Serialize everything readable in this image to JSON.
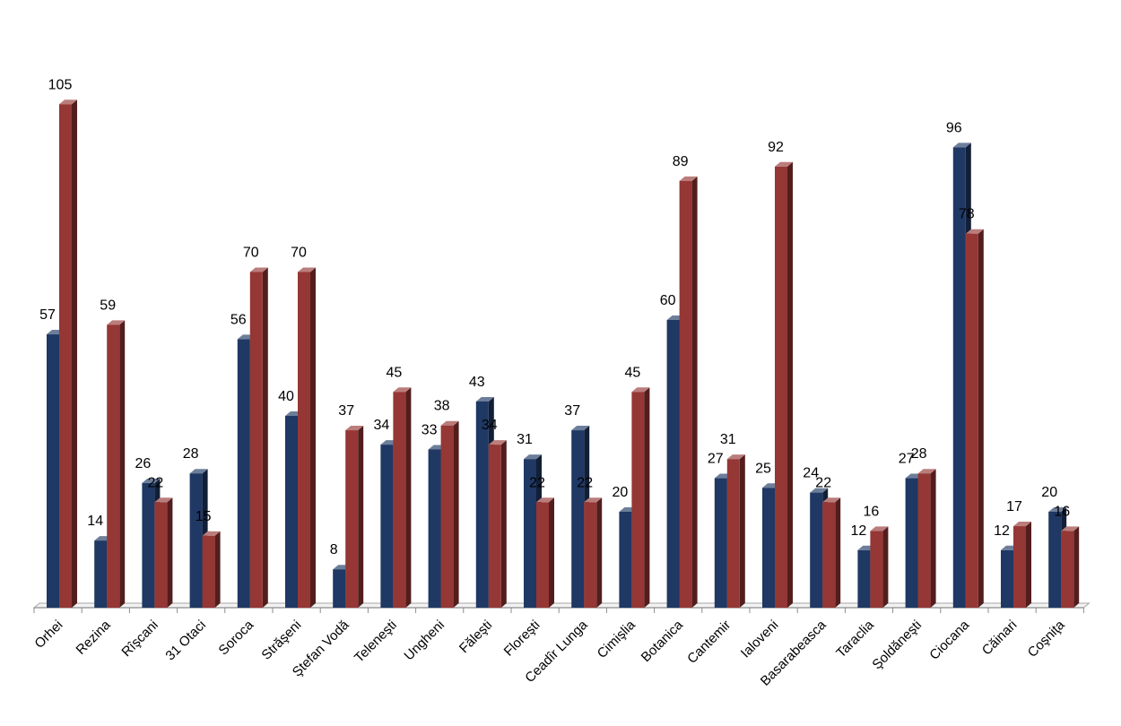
{
  "chart_data": {
    "type": "bar",
    "title": "",
    "xlabel": "",
    "ylabel": "",
    "ylim": [
      0,
      110
    ],
    "grid": false,
    "legend": "none",
    "categories": [
      "Orhei",
      "Rezina",
      "Rîşcani",
      "31 Otaci",
      "Soroca",
      "Străşeni",
      "Ştefan Vodă",
      "Teleneşti",
      "Ungheni",
      "Făleşti",
      "Floreşti",
      "Ceadîr Lunga",
      "Cimişlia",
      "Botanica",
      "Cantemir",
      "Ialoveni",
      "Basarabeasca",
      "Taraclia",
      "Şoldăneşti",
      "Ciocana",
      "Căinari",
      "Coşniţa"
    ],
    "series": [
      {
        "color": "#1f3864",
        "values": [
          57,
          14,
          26,
          28,
          56,
          40,
          8,
          34,
          33,
          43,
          31,
          37,
          20,
          60,
          27,
          25,
          24,
          12,
          27,
          96,
          12,
          20
        ]
      },
      {
        "color": "#953735",
        "values": [
          105,
          59,
          22,
          15,
          70,
          70,
          37,
          45,
          38,
          34,
          22,
          22,
          45,
          89,
          31,
          92,
          22,
          16,
          28,
          78,
          17,
          16
        ]
      }
    ]
  }
}
